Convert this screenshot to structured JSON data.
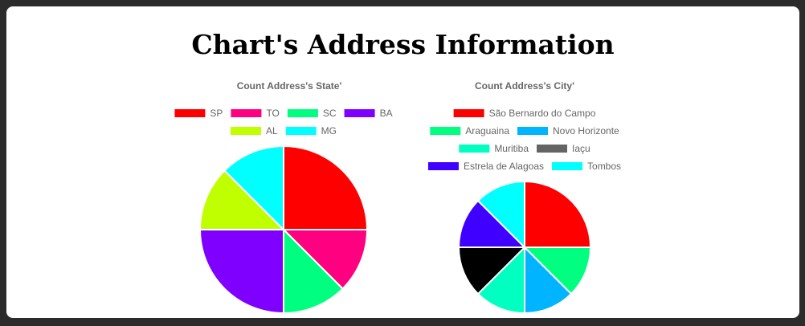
{
  "page": {
    "title": "Chart's Address Information"
  },
  "chart_data": [
    {
      "type": "pie",
      "title": "Count Address's State'",
      "categories": [
        "SP",
        "TO",
        "SC",
        "BA",
        "AL",
        "MG"
      ],
      "values": [
        2,
        1,
        1,
        2,
        1,
        1
      ],
      "colors": [
        "#ff0000",
        "#ff0080",
        "#00ff80",
        "#8000ff",
        "#c0ff00",
        "#00ffff"
      ],
      "legend_position": "top"
    },
    {
      "type": "pie",
      "title": "Count Address's City'",
      "categories": [
        "São Bernardo do Campo",
        "Araguaina",
        "Novo Horizonte",
        "Muritiba",
        "Iaçu",
        "Estrela de Alagoas",
        "Tombos"
      ],
      "values": [
        2,
        1,
        1,
        1,
        1,
        1,
        1
      ],
      "colors": [
        "#ff0000",
        "#00ff80",
        "#00b4ff",
        "#00ffc0",
        "#646464",
        "#4000ff",
        "#00ffff"
      ],
      "slice_colors": [
        "#ff0000",
        "#00ff80",
        "#00b4ff",
        "#00ffc0",
        "#000000",
        "#4000ff",
        "#00ffff"
      ],
      "legend_position": "top"
    }
  ]
}
